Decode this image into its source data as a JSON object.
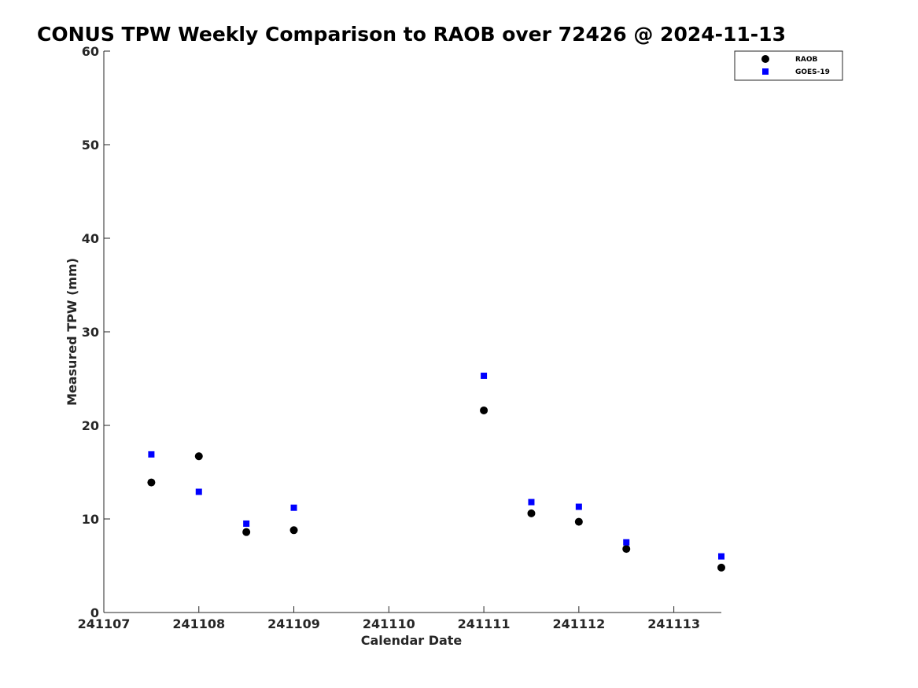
{
  "chart_data": {
    "type": "scatter",
    "title": "CONUS TPW Weekly Comparison to RAOB over 72426 @ 2024-11-13",
    "xlabel": "Calendar Date",
    "ylabel": "Measured TPW (mm)",
    "xlim": [
      241107,
      241113.5
    ],
    "ylim": [
      0,
      60
    ],
    "x_ticks": [
      241107,
      241108,
      241109,
      241110,
      241111,
      241112,
      241113
    ],
    "x_tick_labels": [
      "241107",
      "241108",
      "241109",
      "241110",
      "241111",
      "241112",
      "241113"
    ],
    "y_ticks": [
      0,
      10,
      20,
      30,
      40,
      50,
      60
    ],
    "y_tick_labels": [
      "0",
      "10",
      "20",
      "30",
      "40",
      "50",
      "60"
    ],
    "grid": false,
    "legend_position": "top-right",
    "series": [
      {
        "name": "RAOB",
        "marker": "circle",
        "color": "#000000",
        "x": [
          241107.5,
          241108,
          241108.5,
          241109,
          241111,
          241111.5,
          241112,
          241112.5,
          241113.5
        ],
        "y": [
          13.9,
          16.7,
          8.6,
          8.8,
          21.6,
          10.6,
          9.7,
          6.8,
          4.8
        ]
      },
      {
        "name": "GOES-19",
        "marker": "square",
        "color": "#0000ff",
        "x": [
          241107.5,
          241108,
          241108.5,
          241109,
          241111,
          241111.5,
          241112,
          241112.5,
          241113.5
        ],
        "y": [
          16.9,
          12.9,
          9.5,
          11.2,
          25.3,
          11.8,
          11.3,
          7.5,
          6.0
        ]
      }
    ]
  }
}
